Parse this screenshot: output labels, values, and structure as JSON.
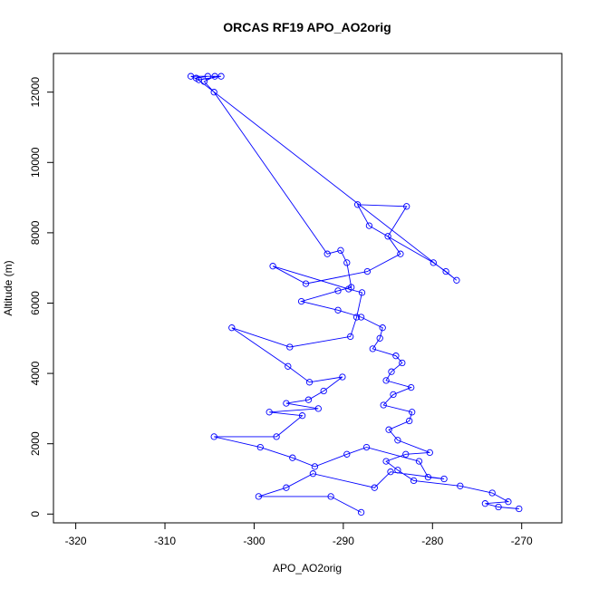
{
  "chart_data": {
    "type": "scatter",
    "title": "ORCAS RF19 APO_AO2orig",
    "xlabel": "APO_AO2orig",
    "ylabel": "Altitude (m)",
    "xlim": [
      -322.5,
      -265.5
    ],
    "ylim": [
      -250,
      13100
    ],
    "x_ticks": [
      -320,
      -310,
      -300,
      -290,
      -280,
      -270
    ],
    "y_ticks": [
      0,
      2000,
      4000,
      6000,
      8000,
      10000,
      12000
    ],
    "grid": false,
    "legend": "none",
    "color": "#0000ff",
    "series": [
      {
        "points": [
          [
            -270.3,
            150
          ],
          [
            -272.6,
            200
          ],
          [
            -274.1,
            300
          ],
          [
            -271.5,
            350
          ],
          [
            -273.3,
            600
          ],
          [
            -276.9,
            800
          ],
          [
            -282.1,
            950
          ],
          [
            -283.9,
            1250
          ],
          [
            -285.2,
            1500
          ],
          [
            -283.0,
            1700
          ],
          [
            -280.3,
            1750
          ],
          [
            -283.9,
            2100
          ],
          [
            -284.9,
            2400
          ],
          [
            -282.6,
            2650
          ],
          [
            -282.3,
            2900
          ],
          [
            -285.5,
            3100
          ],
          [
            -284.4,
            3400
          ],
          [
            -282.4,
            3600
          ],
          [
            -285.2,
            3800
          ],
          [
            -284.6,
            4050
          ],
          [
            -283.4,
            4300
          ],
          [
            -284.1,
            4500
          ],
          [
            -286.7,
            4700
          ],
          [
            -285.9,
            5000
          ],
          [
            -285.6,
            5300
          ],
          [
            -288.0,
            5600
          ],
          [
            -290.6,
            5800
          ],
          [
            -294.7,
            6050
          ],
          [
            -290.6,
            6350
          ],
          [
            -289.1,
            6450
          ],
          [
            -289.6,
            7150
          ],
          [
            -290.3,
            7500
          ],
          [
            -291.8,
            7400
          ],
          [
            -304.5,
            12000
          ],
          [
            -305.6,
            12300
          ],
          [
            -304.4,
            12450
          ],
          [
            -307.1,
            12450
          ],
          [
            -306.2,
            12350
          ],
          [
            -303.7,
            12450
          ],
          [
            -305.2,
            12450
          ],
          [
            -306.5,
            12400
          ],
          [
            -277.3,
            6650
          ],
          [
            -278.5,
            6900
          ],
          [
            -279.9,
            7150
          ],
          [
            -287.1,
            8200
          ],
          [
            -288.4,
            8800
          ],
          [
            -282.9,
            8750
          ],
          [
            -285.0,
            7900
          ],
          [
            -283.6,
            7400
          ],
          [
            -287.3,
            6900
          ],
          [
            -294.2,
            6550
          ],
          [
            -297.9,
            7050
          ],
          [
            -289.4,
            6400
          ],
          [
            -287.9,
            6300
          ],
          [
            -288.5,
            5600
          ],
          [
            -289.2,
            5050
          ],
          [
            -296.0,
            4750
          ],
          [
            -302.5,
            5300
          ],
          [
            -296.2,
            4200
          ],
          [
            -293.8,
            3750
          ],
          [
            -290.1,
            3900
          ],
          [
            -292.2,
            3500
          ],
          [
            -293.9,
            3250
          ],
          [
            -296.4,
            3150
          ],
          [
            -292.8,
            3000
          ],
          [
            -298.3,
            2900
          ],
          [
            -294.6,
            2800
          ],
          [
            -297.5,
            2200
          ],
          [
            -304.5,
            2200
          ],
          [
            -299.3,
            1900
          ],
          [
            -295.7,
            1600
          ],
          [
            -293.2,
            1350
          ],
          [
            -289.6,
            1700
          ],
          [
            -287.4,
            1900
          ],
          [
            -281.5,
            1500
          ],
          [
            -280.5,
            1050
          ],
          [
            -278.7,
            1000
          ],
          [
            -284.7,
            1200
          ],
          [
            -286.5,
            750
          ],
          [
            -293.4,
            1150
          ],
          [
            -296.4,
            750
          ],
          [
            -299.5,
            500
          ],
          [
            -291.4,
            500
          ],
          [
            -288.0,
            50
          ]
        ]
      }
    ]
  }
}
